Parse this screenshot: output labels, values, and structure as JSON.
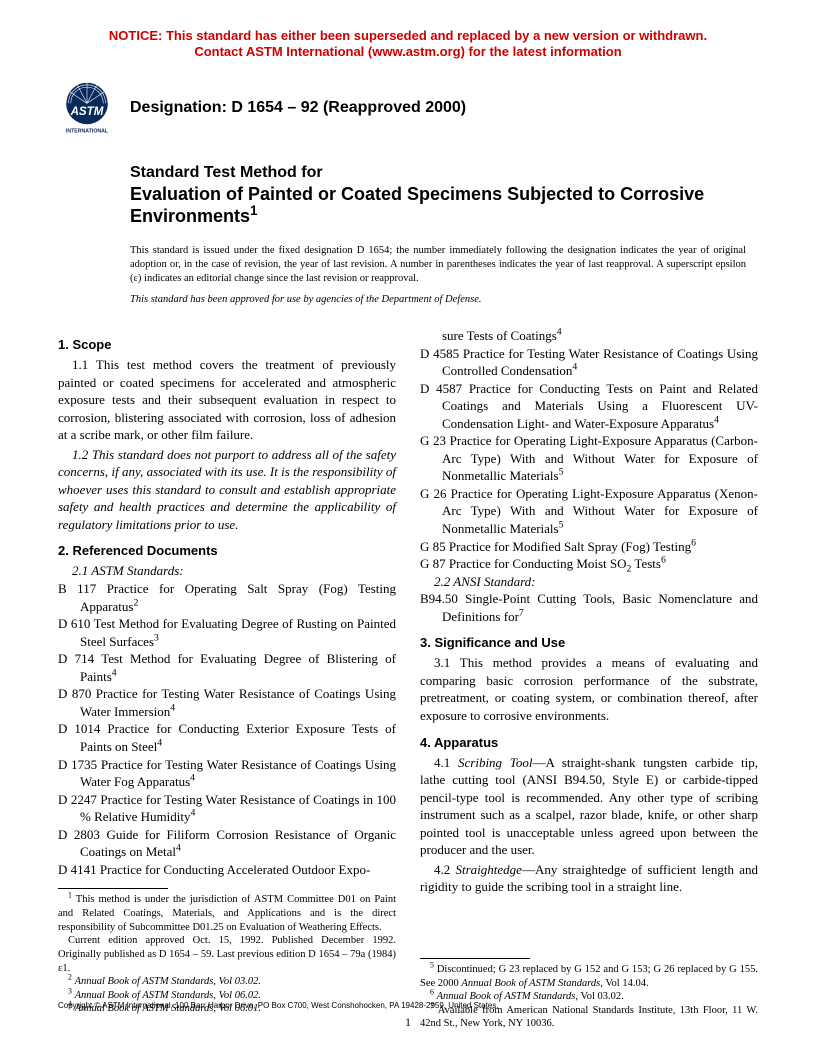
{
  "notice": {
    "line1": "NOTICE: This standard has either been superseded and replaced by a new version or withdrawn.",
    "line2": "Contact ASTM International (www.astm.org) for the latest information",
    "color": "#d00000"
  },
  "logo": {
    "text_top": "ASTM",
    "text_bottom": "INTERNATIONAL"
  },
  "designation": "Designation: D 1654 – 92 (Reapproved 2000)",
  "title": {
    "pre": "Standard Test Method for",
    "main": "Evaluation of Painted or Coated Specimens Subjected to Corrosive Environments",
    "sup": "1"
  },
  "issued_note": "This standard is issued under the fixed designation D 1654; the number immediately following the designation indicates the year of original adoption or, in the case of revision, the year of last revision. A number in parentheses indicates the year of last reapproval. A superscript epsilon (ε) indicates an editorial change since the last revision or reapproval.",
  "dod_note": "This standard has been approved for use by agencies of the Department of Defense.",
  "sections": {
    "scope": {
      "head": "1. Scope",
      "p1": "1.1 This test method covers the treatment of previously painted or coated specimens for accelerated and atmospheric exposure tests and their subsequent evaluation in respect to corrosion, blistering associated with corrosion, loss of adhesion at a scribe mark, or other film failure.",
      "p2": "1.2 This standard does not purport to address all of the safety concerns, if any, associated with its use. It is the responsibility of whoever uses this standard to consult and establish appropriate safety and health practices and determine the applicability of regulatory limitations prior to use."
    },
    "refs": {
      "head": "2. Referenced Documents",
      "astm_label": "2.1 ASTM Standards:",
      "ansi_label": "2.2 ANSI Standard:",
      "left": [
        {
          "t": "B 117 Practice for Operating Salt Spray (Fog) Testing Apparatus",
          "s": "2"
        },
        {
          "t": "D 610 Test Method for Evaluating Degree of Rusting on Painted Steel Surfaces",
          "s": "3"
        },
        {
          "t": "D 714 Test Method for Evaluating Degree of Blistering of Paints",
          "s": "4"
        },
        {
          "t": "D 870 Practice for Testing Water Resistance of Coatings Using Water Immersion",
          "s": "4"
        },
        {
          "t": "D 1014 Practice for Conducting Exterior Exposure Tests of Paints on Steel",
          "s": "4"
        },
        {
          "t": "D 1735 Practice for Testing Water Resistance of Coatings Using Water Fog Apparatus",
          "s": "4"
        },
        {
          "t": "D 2247 Practice for Testing Water Resistance of Coatings in 100 % Relative Humidity",
          "s": "4"
        },
        {
          "t": "D 2803 Guide for Filiform Corrosion Resistance of Organic Coatings on Metal",
          "s": "4"
        },
        {
          "t": "D 4141 Practice for Conducting Accelerated Outdoor Expo-",
          "s": ""
        }
      ],
      "right_cont": {
        "t": "sure Tests of Coatings",
        "s": "4"
      },
      "right": [
        {
          "t": "D 4585 Practice for Testing Water Resistance of Coatings Using Controlled Condensation",
          "s": "4"
        },
        {
          "t": "D 4587 Practice for Conducting Tests on Paint and Related Coatings and Materials Using a Fluorescent UV-Condensation Light- and Water-Exposure Apparatus",
          "s": "4"
        },
        {
          "t": "G 23 Practice for Operating Light-Exposure Apparatus (Carbon-Arc Type) With and Without Water for Exposure of Nonmetallic Materials",
          "s": "5"
        },
        {
          "t": "G 26 Practice for Operating Light-Exposure Apparatus (Xenon-Arc Type) With and Without Water for Exposure of Nonmetallic Materials",
          "s": "5"
        },
        {
          "t": "G 85 Practice for Modified Salt Spray (Fog) Testing",
          "s": "6"
        },
        {
          "t": "G 87 Practice for Conducting Moist SO",
          "sub": "2",
          "tail": " Tests",
          "s": "6"
        }
      ],
      "ansi": {
        "t": "B94.50 Single-Point Cutting Tools, Basic Nomenclature and Definitions for",
        "s": "7"
      }
    },
    "sig": {
      "head": "3. Significance and Use",
      "p1": "3.1 This method provides a means of evaluating and comparing basic corrosion performance of the substrate, pretreatment, or coating system, or combination thereof, after exposure to corrosive environments."
    },
    "app": {
      "head": "4. Apparatus",
      "p1_a": "4.1 ",
      "p1_lab": "Scribing Tool",
      "p1_b": "—A straight-shank tungsten carbide tip, lathe cutting tool (ANSI B94.50, Style E) or carbide-tipped pencil-type tool is recommended. Any other type of scribing instrument such as a scalpel, razor blade, knife, or other sharp pointed tool is unacceptable unless agreed upon between the producer and the user.",
      "p2_a": "4.2 ",
      "p2_lab": "Straightedge",
      "p2_b": "—Any straightedge of sufficient length and rigidity to guide the scribing tool in a straight line."
    }
  },
  "footnotes_left": [
    "1 This method is under the jurisdiction of ASTM Committee D01 on Paint and Related Coatings, Materials, and Applications and is the direct responsibility of Subcommittee D01.25 on Evaluation of Weathering Effects.",
    "Current edition approved Oct. 15, 1992. Published December 1992. Originally published as D 1654 – 59. Last previous edition D 1654 – 79a (1984) ε1.",
    "2 Annual Book of ASTM Standards, Vol 03.02.",
    "3 Annual Book of ASTM Standards, Vol 06.02.",
    "4 Annual Book of ASTM Standards, Vol 06.01."
  ],
  "footnotes_right": [
    "5 Discontinued; G 23 replaced by G 152 and G 153; G 26 replaced by G 155. See 2000 Annual Book of ASTM Standards, Vol 14.04.",
    "6 Annual Book of ASTM Standards, Vol 03.02.",
    "7 Available from American National Standards Institute, 13th Floor, 11 W. 42nd St., New York, NY 10036."
  ],
  "copyright": "Copyright © ASTM International, 100 Barr Harbor Drive, PO Box C700, West Conshohocken, PA 19428-2959, United States.",
  "pagenum": "1"
}
